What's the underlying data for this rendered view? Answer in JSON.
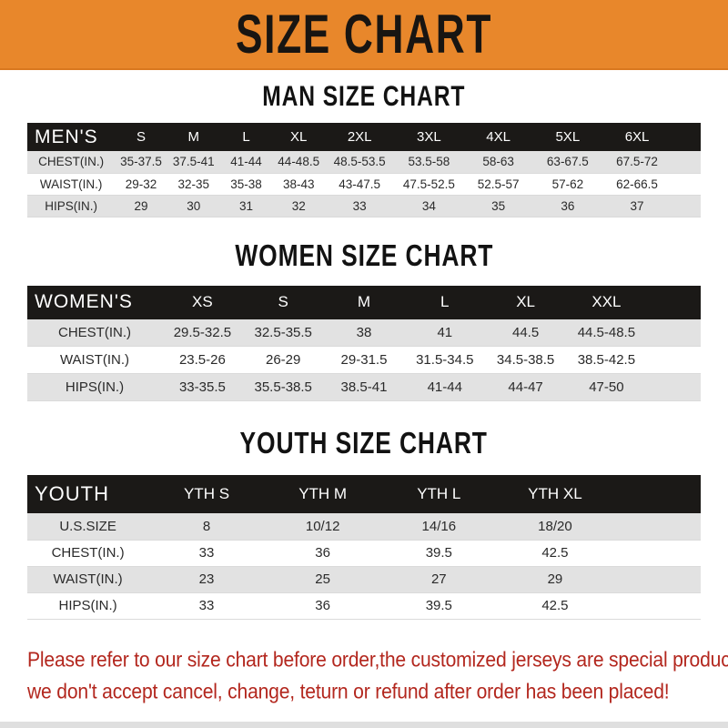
{
  "banner": {
    "title": "SIZE CHART"
  },
  "colors": {
    "banner_bg": "#E8872B",
    "header_bar": "#1B1917",
    "row_stripe": "#E2E2E2",
    "footer_text": "#B3271E"
  },
  "sections": [
    {
      "id": "men",
      "title": "MAN SIZE CHART",
      "header": {
        "label": "MEN'S",
        "sizes": [
          "S",
          "M",
          "L",
          "XL",
          "2XL",
          "3XL",
          "4XL",
          "5XL",
          "6XL"
        ]
      },
      "rows": [
        {
          "label": "CHEST(IN.)",
          "values": [
            "35-37.5",
            "37.5-41",
            "41-44",
            "44-48.5",
            "48.5-53.5",
            "53.5-58",
            "58-63",
            "63-67.5",
            "67.5-72"
          ]
        },
        {
          "label": "WAIST(IN.)",
          "values": [
            "29-32",
            "32-35",
            "35-38",
            "38-43",
            "43-47.5",
            "47.5-52.5",
            "52.5-57",
            "57-62",
            "62-66.5"
          ]
        },
        {
          "label": "HIPS(IN.)",
          "values": [
            "29",
            "30",
            "31",
            "32",
            "33",
            "34",
            "35",
            "36",
            "37"
          ]
        }
      ]
    },
    {
      "id": "women",
      "title": "WOMEN SIZE CHART",
      "header": {
        "label": "WOMEN'S",
        "sizes": [
          "XS",
          "S",
          "M",
          "L",
          "XL",
          "XXL"
        ]
      },
      "rows": [
        {
          "label": "CHEST(IN.)",
          "values": [
            "29.5-32.5",
            "32.5-35.5",
            "38",
            "41",
            "44.5",
            "44.5-48.5"
          ]
        },
        {
          "label": "WAIST(IN.)",
          "values": [
            "23.5-26",
            "26-29",
            "29-31.5",
            "31.5-34.5",
            "34.5-38.5",
            "38.5-42.5"
          ]
        },
        {
          "label": "HIPS(IN.)",
          "values": [
            "33-35.5",
            "35.5-38.5",
            "38.5-41",
            "41-44",
            "44-47",
            "47-50"
          ]
        }
      ]
    },
    {
      "id": "youth",
      "title": "YOUTH SIZE CHART",
      "header": {
        "label": "YOUTH",
        "sizes": [
          "YTH S",
          "YTH M",
          "YTH L",
          "YTH XL"
        ]
      },
      "rows": [
        {
          "label": "U.S.SIZE",
          "values": [
            "8",
            "10/12",
            "14/16",
            "18/20"
          ]
        },
        {
          "label": "CHEST(IN.)",
          "values": [
            "33",
            "36",
            "39.5",
            "42.5"
          ]
        },
        {
          "label": "WAIST(IN.)",
          "values": [
            "23",
            "25",
            "27",
            "29"
          ]
        },
        {
          "label": "HIPS(IN.)",
          "values": [
            "33",
            "36",
            "39.5",
            "42.5"
          ]
        }
      ]
    }
  ],
  "footer": {
    "lines": [
      "Please refer to our size chart before order,the customized jerseys are special products,",
      "we don't accept cancel, change, teturn or refund after order has been placed!"
    ]
  }
}
